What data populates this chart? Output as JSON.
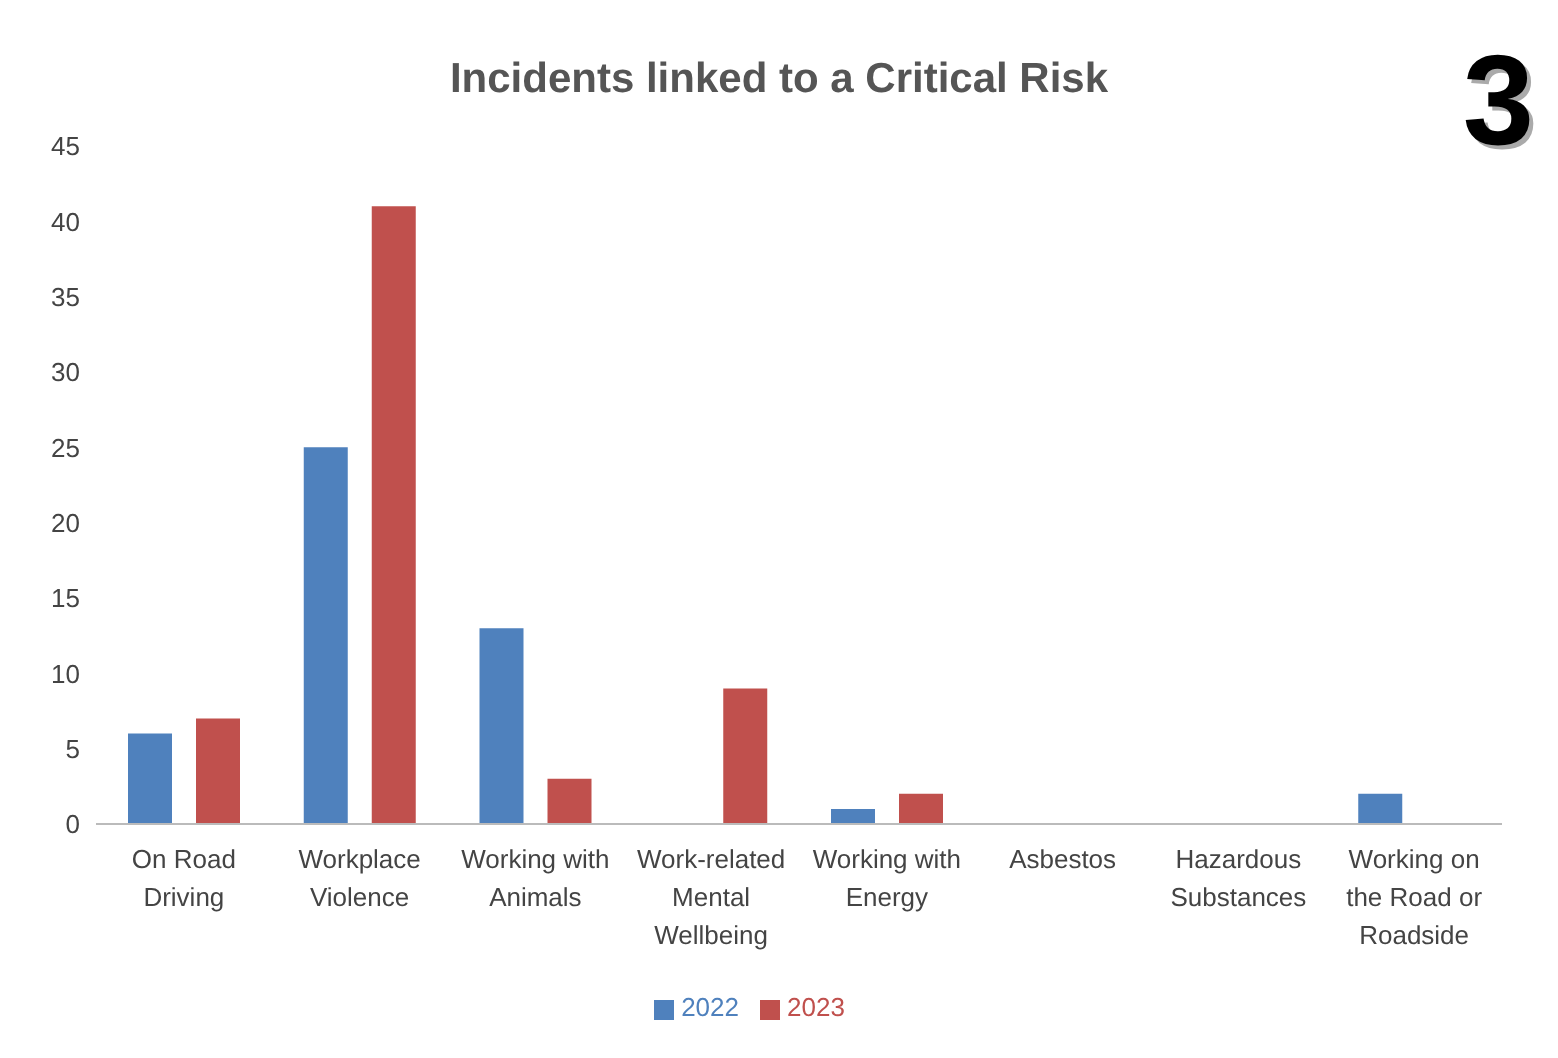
{
  "chart_data": {
    "type": "bar",
    "title": "Incidents linked to a Critical Risk",
    "categories": [
      "On Road Driving",
      "Workplace Violence",
      "Working with Animals",
      "Work-related Mental Wellbeing",
      "Working with Energy",
      "Asbestos",
      "Hazardous Substances",
      "Working on the Road or Roadside"
    ],
    "series": [
      {
        "name": "2022",
        "color": "#4f81bd",
        "values": [
          6,
          25,
          13,
          0,
          1,
          0,
          0,
          2
        ]
      },
      {
        "name": "2023",
        "color": "#c0504d",
        "values": [
          7,
          41,
          3,
          9,
          2,
          0,
          0,
          0
        ]
      }
    ],
    "ylim": [
      0,
      45
    ],
    "yticks": [
      0,
      5,
      10,
      15,
      20,
      25,
      30,
      35,
      40,
      45
    ],
    "grid": false,
    "legend": "bottom",
    "annotations": [
      "3"
    ]
  }
}
